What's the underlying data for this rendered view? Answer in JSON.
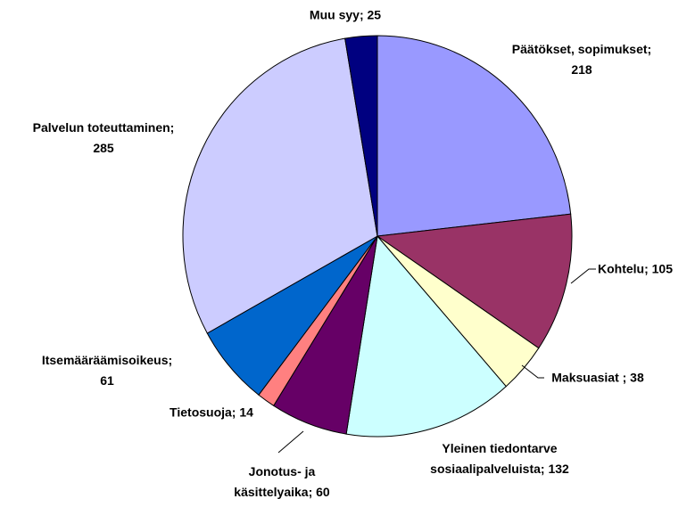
{
  "chart_data": {
    "type": "pie",
    "values": [
      218,
      105,
      38,
      132,
      60,
      14,
      61,
      285,
      25
    ],
    "value_labels": [
      "Päätökset, sopimukset;\n218",
      "Kohtelu; 105",
      "Maksuasiat ; 38",
      "Yleinen tiedontarve\nsosiaalipalveluista; 132",
      "Jonotus- ja\nkäsittelyaika; 60",
      "Tietosuoja; 14",
      "Itsemääräämisoikeus;\n61",
      "Palvelun toteuttaminen;\n285",
      "Muu syy; 25"
    ],
    "colors": [
      "#9999ff",
      "#993366",
      "#ffffcc",
      "#ccffff",
      "#660066",
      "#ff8080",
      "#0066cc",
      "#ccccff",
      "#000080"
    ]
  }
}
